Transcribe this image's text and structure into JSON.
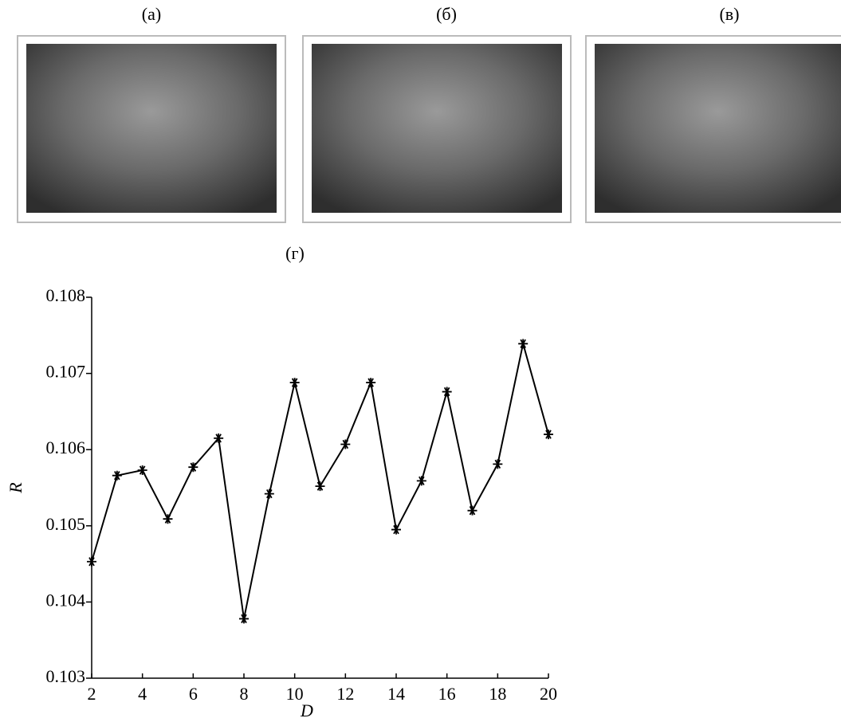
{
  "panel_labels": [
    "(а)",
    "(б)",
    "(в)"
  ],
  "chart_data": {
    "type": "line",
    "title": "(г)",
    "xlabel": "D",
    "ylabel": "R",
    "x": [
      2,
      3,
      4,
      5,
      6,
      7,
      8,
      9,
      10,
      11,
      12,
      13,
      14,
      15,
      16,
      17,
      18,
      19,
      20
    ],
    "series": [
      {
        "name": "R",
        "color": "#000000",
        "values": [
          0.10453,
          0.10566,
          0.10573,
          0.10509,
          0.10577,
          0.10615,
          0.10378,
          0.10542,
          0.10688,
          0.10552,
          0.10607,
          0.10688,
          0.10495,
          0.10559,
          0.10676,
          0.1052,
          0.10581,
          0.10739,
          0.1062
        ]
      }
    ],
    "xlim": [
      2,
      20
    ],
    "ylim": [
      0.103,
      0.108
    ],
    "xticks": [
      2,
      4,
      6,
      8,
      10,
      12,
      14,
      16,
      18,
      20
    ],
    "yticks": [
      0.103,
      0.104,
      0.105,
      0.106,
      0.107,
      0.108
    ]
  }
}
